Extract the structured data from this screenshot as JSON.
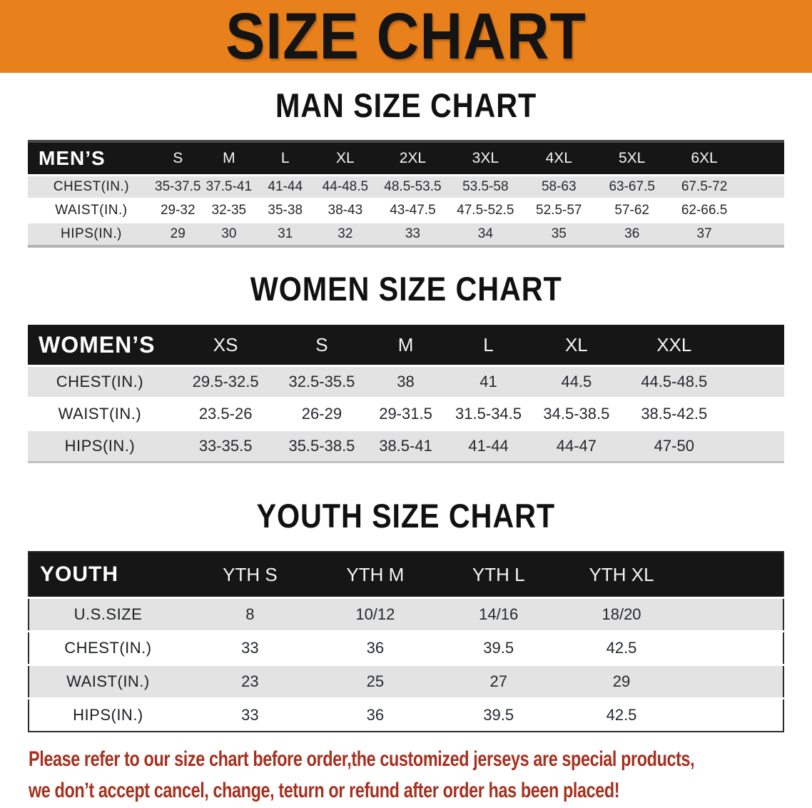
{
  "banner": {
    "title": "SIZE CHART"
  },
  "sections": [
    {
      "id": "men",
      "title": "MAN SIZE CHART",
      "header_label": "MEN’S",
      "columns": [
        "S",
        "M",
        "L",
        "XL",
        "2XL",
        "3XL",
        "4XL",
        "5XL",
        "6XL"
      ],
      "rows": [
        {
          "label": "CHEST(IN.)",
          "values": [
            "35-37.5",
            "37.5-41",
            "41-44",
            "44-48.5",
            "48.5-53.5",
            "53.5-58",
            "58-63",
            "63-67.5",
            "67.5-72"
          ]
        },
        {
          "label": "WAIST(IN.)",
          "values": [
            "29-32",
            "32-35",
            "35-38",
            "38-43",
            "43-47.5",
            "47.5-52.5",
            "52.5-57",
            "57-62",
            "62-66.5"
          ]
        },
        {
          "label": "HIPS(IN.)",
          "values": [
            "29",
            "30",
            "31",
            "32",
            "33",
            "34",
            "35",
            "36",
            "37"
          ]
        }
      ]
    },
    {
      "id": "women",
      "title": "WOMEN SIZE CHART",
      "header_label": "WOMEN’S",
      "columns": [
        "XS",
        "S",
        "M",
        "L",
        "XL",
        "XXL"
      ],
      "rows": [
        {
          "label": "CHEST(IN.)",
          "values": [
            "29.5-32.5",
            "32.5-35.5",
            "38",
            "41",
            "44.5",
            "44.5-48.5"
          ]
        },
        {
          "label": "WAIST(IN.)",
          "values": [
            "23.5-26",
            "26-29",
            "29-31.5",
            "31.5-34.5",
            "34.5-38.5",
            "38.5-42.5"
          ]
        },
        {
          "label": "HIPS(IN.)",
          "values": [
            "33-35.5",
            "35.5-38.5",
            "38.5-41",
            "41-44",
            "44-47",
            "47-50"
          ]
        }
      ]
    },
    {
      "id": "youth",
      "title": "YOUTH SIZE CHART",
      "header_label": "YOUTH",
      "columns": [
        "YTH S",
        "YTH M",
        "YTH L",
        "YTH XL"
      ],
      "rows": [
        {
          "label": "U.S.SIZE",
          "values": [
            "8",
            "10/12",
            "14/16",
            "18/20"
          ]
        },
        {
          "label": "CHEST(IN.)",
          "values": [
            "33",
            "36",
            "39.5",
            "42.5"
          ]
        },
        {
          "label": "WAIST(IN.)",
          "values": [
            "23",
            "25",
            "27",
            "29"
          ]
        },
        {
          "label": "HIPS(IN.)",
          "values": [
            "33",
            "36",
            "39.5",
            "42.5"
          ]
        }
      ]
    }
  ],
  "disclaimer": {
    "line1": "Please refer to our size chart before order,the customized jerseys are special products,",
    "line2": "we don’t accept cancel, change, teturn or refund after order has been placed!"
  },
  "colors": {
    "banner_bg": "#E8801B",
    "table_header_bg": "#161616",
    "row_alt_bg": "#E3E3E3",
    "disclaimer_text": "#A6301F"
  }
}
